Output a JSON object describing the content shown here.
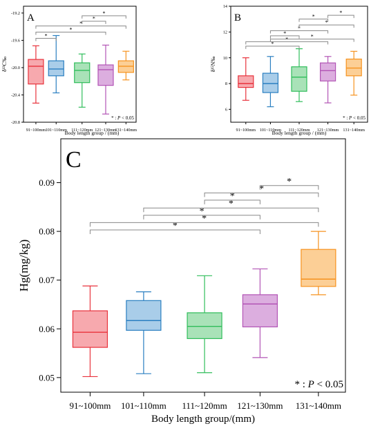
{
  "figure": {
    "significance_symbol": "*",
    "significance_note": "P < 0.05"
  },
  "chart_data": [
    {
      "panel": "A",
      "type": "box",
      "categories": [
        "91~100mm",
        "101~110mm",
        "111~120mm",
        "121~130mm",
        "131~140mm"
      ],
      "xlabel": "Body length group / (mm)",
      "ylabel": "δ¹³C‰",
      "ylim": [
        -20.8,
        -19.1
      ],
      "yticks": [
        -20.8,
        -20.4,
        -20.0,
        -19.6,
        -19.2
      ],
      "ytick_labels": [
        "-20.8",
        "-20.4",
        "-20.0",
        "-19.6",
        "-19.2"
      ],
      "boxes": [
        {
          "min": -20.52,
          "q1": -20.24,
          "median": -19.98,
          "q3": -19.88,
          "max": -19.68,
          "color": "#e8313b",
          "fill": "#f7a9ae"
        },
        {
          "min": -20.37,
          "q1": -20.12,
          "median": -20.02,
          "q3": -19.9,
          "max": -19.53,
          "color": "#2a7fc1",
          "fill": "#a9cde9"
        },
        {
          "min": -20.58,
          "q1": -20.22,
          "median": -20.04,
          "q3": -19.93,
          "max": -19.8,
          "color": "#2fbd5a",
          "fill": "#a9e2b8"
        },
        {
          "min": -20.68,
          "q1": -20.26,
          "median": -20.03,
          "q3": -19.96,
          "max": -19.67,
          "color": "#b254b5",
          "fill": "#dcaedf"
        },
        {
          "min": -20.18,
          "q1": -20.07,
          "median": -19.98,
          "q3": -19.9,
          "max": -19.76,
          "color": "#f6921e",
          "fill": "#fccf96"
        }
      ],
      "comparisons": [
        {
          "a": 0,
          "b": 1,
          "y": -19.57
        },
        {
          "a": 0,
          "b": 3,
          "y": -19.48
        },
        {
          "a": 0,
          "b": 4,
          "y": -19.39
        },
        {
          "a": 2,
          "b": 3,
          "y": -19.32
        },
        {
          "a": 2,
          "b": 4,
          "y": -19.24
        }
      ]
    },
    {
      "panel": "B",
      "type": "box",
      "categories": [
        "91~100mm",
        "101~110mm",
        "111~120mm",
        "121~130mm",
        "131~140mm"
      ],
      "xlabel": "Body length group / (mm)",
      "ylabel": "δ¹⁵N‰",
      "ylim": [
        5,
        14
      ],
      "yticks": [
        6,
        8,
        10,
        12,
        14
      ],
      "ytick_labels": [
        "6",
        "8",
        "10",
        "12",
        "14"
      ],
      "boxes": [
        {
          "min": 6.7,
          "q1": 7.7,
          "median": 8.0,
          "q3": 8.6,
          "max": 10.0,
          "color": "#e8313b",
          "fill": "#f7a9ae"
        },
        {
          "min": 6.2,
          "q1": 7.3,
          "median": 8.0,
          "q3": 8.8,
          "max": 10.1,
          "color": "#2a7fc1",
          "fill": "#a9cde9"
        },
        {
          "min": 6.6,
          "q1": 7.4,
          "median": 8.5,
          "q3": 9.3,
          "max": 10.7,
          "color": "#2fbd5a",
          "fill": "#a9e2b8"
        },
        {
          "min": 6.5,
          "q1": 8.2,
          "median": 9.0,
          "q3": 9.6,
          "max": 10.1,
          "color": "#b254b5",
          "fill": "#dcaedf"
        },
        {
          "min": 7.1,
          "q1": 8.6,
          "median": 9.2,
          "q3": 9.9,
          "max": 10.5,
          "color": "#f6921e",
          "fill": "#fccf96"
        }
      ],
      "comparisons": [
        {
          "a": 0,
          "b": 2,
          "y": 10.9
        },
        {
          "a": 0,
          "b": 3,
          "y": 11.25
        },
        {
          "a": 1,
          "b": 2,
          "y": 11.7
        },
        {
          "a": 1,
          "b": 4,
          "y": 11.45
        },
        {
          "a": 1,
          "b": 3,
          "y": 12.1
        },
        {
          "a": 2,
          "b": 4,
          "y": 12.55
        },
        {
          "a": 2,
          "b": 3,
          "y": 13.0
        },
        {
          "a": 3,
          "b": 4,
          "y": 13.3
        }
      ]
    },
    {
      "panel": "C",
      "type": "box",
      "categories": [
        "91~100mm",
        "101~110mm",
        "111~120mm",
        "121~130mm",
        "131~140mm"
      ],
      "xlabel": "Body length group/(mm)",
      "ylabel": "Hg(mg/kg)",
      "ylim": [
        0.047,
        0.099
      ],
      "yticks": [
        0.05,
        0.06,
        0.07,
        0.08,
        0.09
      ],
      "ytick_labels": [
        "0.05",
        "0.06",
        "0.07",
        "0.08",
        "0.09"
      ],
      "boxes": [
        {
          "min": 0.0502,
          "q1": 0.0562,
          "median": 0.0593,
          "q3": 0.0637,
          "max": 0.0688,
          "color": "#e8313b",
          "fill": "#f7a9ae"
        },
        {
          "min": 0.0508,
          "q1": 0.0597,
          "median": 0.0617,
          "q3": 0.0658,
          "max": 0.0676,
          "color": "#2a7fc1",
          "fill": "#a9cde9"
        },
        {
          "min": 0.051,
          "q1": 0.058,
          "median": 0.0605,
          "q3": 0.0633,
          "max": 0.0709,
          "color": "#2fbd5a",
          "fill": "#a9e2b8"
        },
        {
          "min": 0.0541,
          "q1": 0.0604,
          "median": 0.0651,
          "q3": 0.067,
          "max": 0.0723,
          "color": "#b254b5",
          "fill": "#dcaedf"
        },
        {
          "min": 0.067,
          "q1": 0.0687,
          "median": 0.0702,
          "q3": 0.0763,
          "max": 0.08,
          "color": "#f6921e",
          "fill": "#fccf96"
        }
      ],
      "comparisons": [
        {
          "a": 0,
          "b": 3,
          "y": 0.0803
        },
        {
          "a": 0,
          "b": 4,
          "y": 0.0818
        },
        {
          "a": 1,
          "b": 3,
          "y": 0.0833
        },
        {
          "a": 1,
          "b": 4,
          "y": 0.0848
        },
        {
          "a": 2,
          "b": 3,
          "y": 0.0864
        },
        {
          "a": 2,
          "b": 4,
          "y": 0.0879
        },
        {
          "a": 3,
          "b": 4,
          "y": 0.0894
        }
      ]
    }
  ]
}
